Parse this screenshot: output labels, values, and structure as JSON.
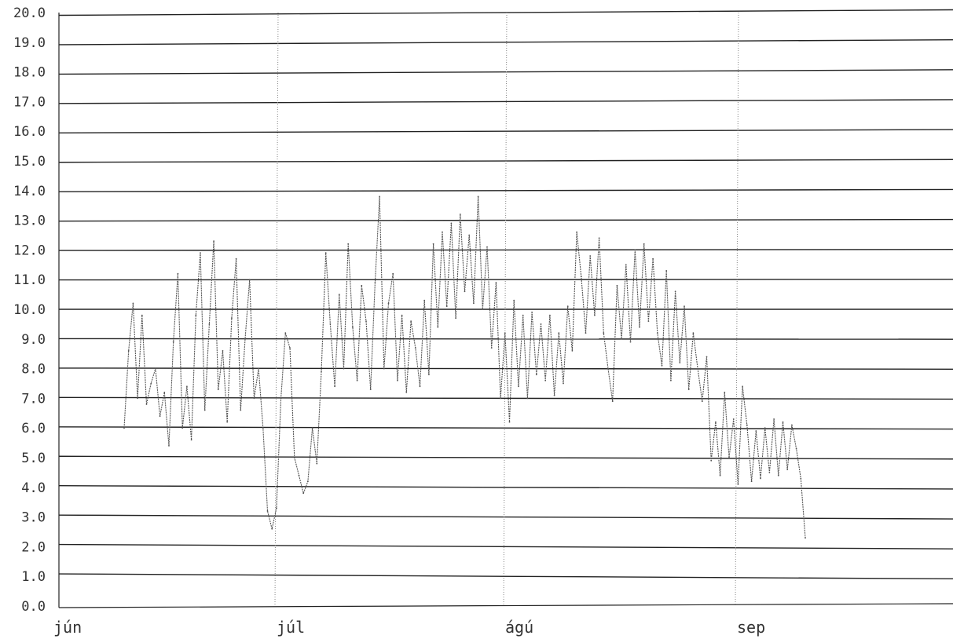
{
  "chart_data": {
    "type": "line",
    "title": "",
    "xlabel": "",
    "ylabel": "",
    "ylim": [
      0,
      20
    ],
    "y_ticks": [
      "0.0",
      "1.0",
      "2.0",
      "3.0",
      "4.0",
      "5.0",
      "6.0",
      "7.0",
      "8.0",
      "9.0",
      "10.0",
      "11.0",
      "12.0",
      "13.0",
      "14.0",
      "15.0",
      "16.0",
      "17.0",
      "18.0",
      "19.0",
      "20.0"
    ],
    "x_ticks": [
      "jún",
      "júl",
      "ágú",
      "sep"
    ],
    "grid": true,
    "line_color": "#555555",
    "series": [
      {
        "values": [
          6.0,
          8.6,
          10.2,
          7.0,
          9.8,
          6.8,
          7.5,
          8.0,
          6.4,
          7.2,
          5.4,
          8.9,
          11.2,
          6.0,
          7.4,
          5.6,
          9.8,
          11.9,
          6.6,
          9.5,
          12.3,
          7.3,
          8.6,
          6.2,
          9.7,
          11.7,
          6.6,
          9.0,
          11.0,
          7.0,
          8.0,
          6.0,
          3.2,
          2.6,
          3.3,
          7.0,
          9.2,
          8.7,
          5.0,
          4.4,
          3.8,
          4.2,
          6.0,
          4.8,
          7.9,
          11.9,
          9.5,
          7.4,
          10.5,
          8.0,
          12.2,
          9.4,
          7.6,
          10.8,
          9.6,
          7.3,
          10.9,
          13.8,
          8.0,
          10.2,
          11.2,
          7.6,
          9.8,
          7.2,
          9.6,
          8.7,
          7.4,
          10.3,
          7.8,
          12.2,
          9.4,
          12.6,
          10.1,
          12.9,
          9.7,
          13.2,
          10.6,
          12.5,
          10.2,
          13.8,
          10.0,
          12.1,
          8.7,
          10.9,
          7.0,
          9.2,
          6.2,
          10.3,
          7.4,
          9.8,
          7.0,
          9.9,
          7.8,
          9.5,
          7.6,
          9.8,
          7.1,
          9.2,
          7.5,
          10.1,
          8.6,
          12.6,
          11.1,
          9.2,
          11.8,
          9.8,
          12.4,
          9.2,
          8.0,
          6.9,
          10.8,
          9.0,
          11.5,
          8.9,
          12.0,
          9.4,
          12.2,
          9.6,
          11.7,
          9.2,
          8.1,
          11.3,
          7.6,
          10.6,
          8.2,
          10.1,
          7.3,
          9.2,
          8.0,
          6.9,
          8.4,
          4.9,
          6.2,
          4.4,
          7.2,
          5.0,
          6.3,
          4.1,
          7.4,
          6.1,
          4.2,
          5.9,
          4.3,
          6.0,
          4.5,
          6.3,
          4.4,
          6.2,
          4.6,
          6.1,
          5.3,
          4.3,
          2.3
        ],
        "color": "#555555"
      }
    ]
  }
}
